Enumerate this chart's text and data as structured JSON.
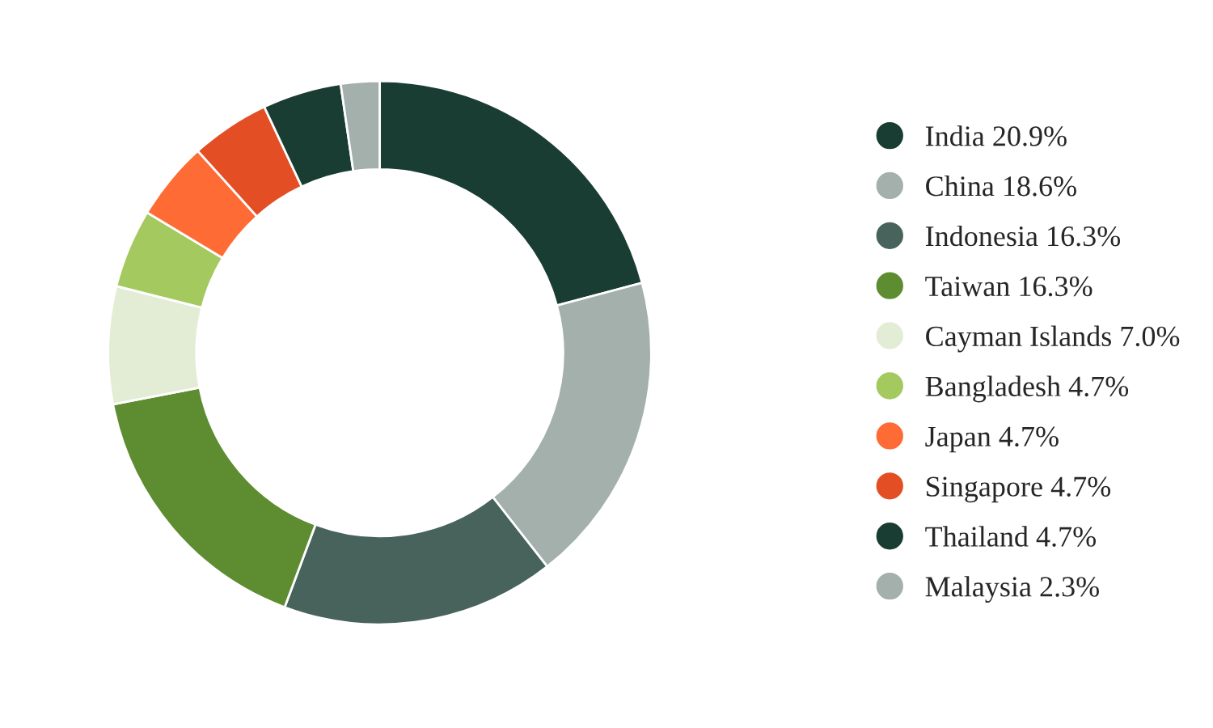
{
  "chart_data": {
    "type": "donut",
    "categories": [
      "India",
      "China",
      "Indonesia",
      "Taiwan",
      "Cayman Islands",
      "Bangladesh",
      "Japan",
      "Singapore",
      "Thailand",
      "Malaysia"
    ],
    "values": [
      20.9,
      18.6,
      16.3,
      16.3,
      7.0,
      4.7,
      4.7,
      4.7,
      4.7,
      2.3
    ],
    "value_labels": [
      "20.9%",
      "18.6%",
      "16.3%",
      "16.3%",
      "7.0%",
      "4.7%",
      "4.7%",
      "4.7%",
      "4.7%",
      "2.3%"
    ],
    "colors": [
      "#1a3d33",
      "#a3b0ab",
      "#48635b",
      "#5e8c31",
      "#e3edd5",
      "#a3c95f",
      "#ff6b35",
      "#e34e24",
      "#1a3d33",
      "#a3b0ab"
    ],
    "legend": "right"
  }
}
